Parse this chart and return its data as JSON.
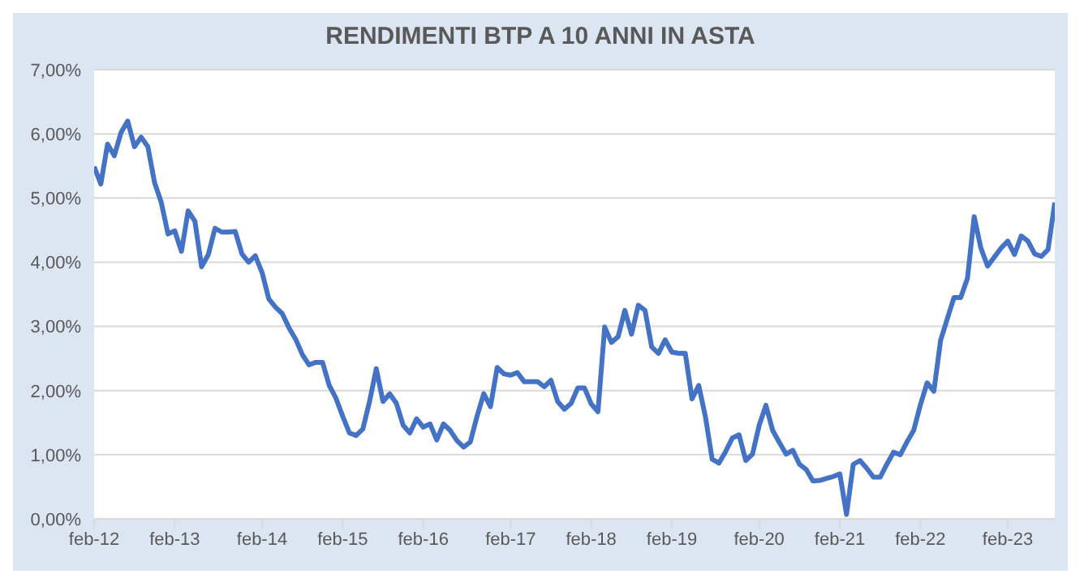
{
  "chart_data": {
    "type": "line",
    "title": "RENDIMENTI BTP A 10 ANNI IN ASTA",
    "categories": [
      "feb-12",
      null,
      null,
      null,
      null,
      null,
      null,
      null,
      null,
      null,
      null,
      null,
      "feb-13",
      null,
      null,
      null,
      null,
      null,
      null,
      null,
      null,
      null,
      null,
      null,
      null,
      "feb-14",
      null,
      null,
      null,
      null,
      null,
      null,
      null,
      null,
      null,
      null,
      null,
      "feb-15",
      null,
      null,
      null,
      null,
      null,
      null,
      null,
      null,
      null,
      null,
      null,
      "feb-16",
      null,
      null,
      null,
      null,
      null,
      null,
      null,
      null,
      null,
      null,
      null,
      null,
      "feb-17",
      null,
      null,
      null,
      null,
      null,
      null,
      null,
      null,
      null,
      null,
      null,
      "feb-18",
      null,
      null,
      null,
      null,
      null,
      null,
      null,
      null,
      null,
      null,
      null,
      "feb-19",
      null,
      null,
      null,
      null,
      null,
      null,
      null,
      null,
      null,
      null,
      null,
      null,
      "feb-20",
      null,
      null,
      null,
      null,
      null,
      null,
      null,
      null,
      null,
      null,
      null,
      "feb-21",
      null,
      null,
      null,
      null,
      null,
      null,
      null,
      null,
      null,
      null,
      null,
      "feb-22",
      null,
      null,
      null,
      null,
      null,
      null,
      null,
      null,
      null,
      null,
      null,
      null,
      "feb-23",
      null,
      null,
      null,
      null,
      null,
      null,
      null
    ],
    "series": [
      {
        "color": "#4472c4",
        "values": [
          5.49,
          5.22,
          5.84,
          5.66,
          6.02,
          6.2,
          5.8,
          5.95,
          5.8,
          5.24,
          4.93,
          4.44,
          4.49,
          4.17,
          4.8,
          4.64,
          3.93,
          4.12,
          4.53,
          4.47,
          4.47,
          4.48,
          4.13,
          4.0,
          4.1,
          3.84,
          3.43,
          3.3,
          3.2,
          2.98,
          2.8,
          2.56,
          2.4,
          2.44,
          2.44,
          2.08,
          1.88,
          1.6,
          1.34,
          1.3,
          1.4,
          1.83,
          2.34,
          1.83,
          1.95,
          1.8,
          1.46,
          1.34,
          1.56,
          1.43,
          1.48,
          1.23,
          1.48,
          1.38,
          1.22,
          1.12,
          1.2,
          1.6,
          1.95,
          1.75,
          2.36,
          2.26,
          2.24,
          2.28,
          2.14,
          2.14,
          2.14,
          2.06,
          2.16,
          1.83,
          1.71,
          1.8,
          2.04,
          2.04,
          1.79,
          1.67,
          2.99,
          2.75,
          2.84,
          3.25,
          2.88,
          3.33,
          3.25,
          2.68,
          2.58,
          2.79,
          2.6,
          2.58,
          2.58,
          1.87,
          2.08,
          1.59,
          0.93,
          0.87,
          1.05,
          1.26,
          1.31,
          0.91,
          1.01,
          1.46,
          1.77,
          1.38,
          1.19,
          1.01,
          1.07,
          0.85,
          0.77,
          0.59,
          0.6,
          0.63,
          0.66,
          0.7,
          0.07,
          0.85,
          0.91,
          0.79,
          0.65,
          0.65,
          0.85,
          1.04,
          1.0,
          1.2,
          1.38,
          1.78,
          2.12,
          1.99,
          2.78,
          3.12,
          3.45,
          3.45,
          3.75,
          4.71,
          4.22,
          3.94,
          4.08,
          4.22,
          4.33,
          4.12,
          4.41,
          4.33,
          4.13,
          4.09,
          4.2,
          4.93
        ]
      }
    ],
    "ylim": [
      0,
      7
    ],
    "yticks": [
      {
        "value": 0,
        "label": "0,00%"
      },
      {
        "value": 1,
        "label": "1,00%"
      },
      {
        "value": 2,
        "label": "2,00%"
      },
      {
        "value": 3,
        "label": "3,00%"
      },
      {
        "value": 4,
        "label": "4,00%"
      },
      {
        "value": 5,
        "label": "5,00%"
      },
      {
        "value": 6,
        "label": "6,00%"
      },
      {
        "value": 7,
        "label": "7,00%"
      }
    ],
    "grid": "y"
  }
}
